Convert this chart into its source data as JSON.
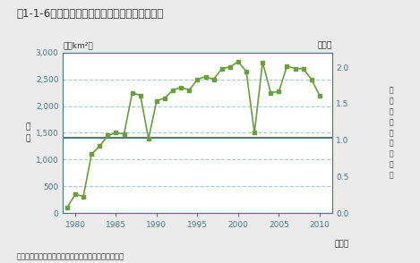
{
  "title": "図1-1-6　南極上空のオゾンホールの面積の推移",
  "ylabel_left": "（万km²）",
  "ylabel_right": "（倍）",
  "xlabel": "（年）",
  "source": "出典：気象庁ホームページ「オゾンホール最大面積」",
  "years": [
    1979,
    1980,
    1981,
    1982,
    1983,
    1984,
    1985,
    1986,
    1987,
    1988,
    1989,
    1990,
    1991,
    1992,
    1993,
    1994,
    1995,
    1996,
    1997,
    1998,
    1999,
    2000,
    2001,
    2002,
    2003,
    2004,
    2005,
    2006,
    2007,
    2008,
    2009,
    2010
  ],
  "values": [
    100,
    350,
    310,
    1100,
    1250,
    1450,
    1500,
    1480,
    2250,
    2200,
    1390,
    2100,
    2150,
    2300,
    2350,
    2300,
    2500,
    2550,
    2500,
    2700,
    2730,
    2830,
    2650,
    1500,
    2820,
    2250,
    2270,
    2750,
    2700,
    2700,
    2500,
    2200
  ],
  "reference_line": 1400,
  "line_color": "#6b9e3e",
  "reference_line_color": "#4a7a8a",
  "background_color": "#ebebeb",
  "plot_background": "#ffffff",
  "grid_color": "#aac8d8",
  "ylim_left": [
    0,
    3000
  ],
  "ylim_right": [
    0.0,
    2.2
  ],
  "yticks_left": [
    0,
    500,
    1000,
    1500,
    2000,
    2500,
    3000
  ],
  "yticks_right": [
    0.0,
    0.5,
    1.0,
    1.5,
    2.0
  ],
  "xticks": [
    1980,
    1985,
    1990,
    1995,
    2000,
    2005,
    2010
  ],
  "title_color": "#333333",
  "tick_color": "#4a7a8a",
  "axis_color": "#4a7a8a",
  "label_men_seki": "面\n積",
  "label_right_side": "南\n極\n大\n陸\nと\nの\n面\n積\n比"
}
